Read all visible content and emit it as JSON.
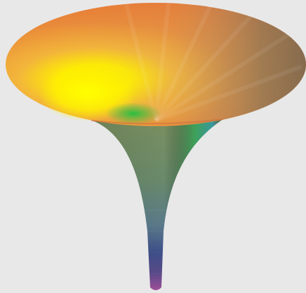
{
  "scene": {
    "subject": "funnel-surface",
    "background_color": "#e8e8e8",
    "rim_colors": {
      "left": "#e9652c",
      "inner_highlight": "#fff200",
      "inner_green": "#22b14c",
      "right": "#8a7a5a",
      "back": "#d98b3a"
    },
    "stem_colors": {
      "upper": "#6f8a6a",
      "cyan_band": "#0fa0c8",
      "blue": "#3a4f9a",
      "purple": "#7a4a9a",
      "magenta": "#a0509a"
    }
  }
}
